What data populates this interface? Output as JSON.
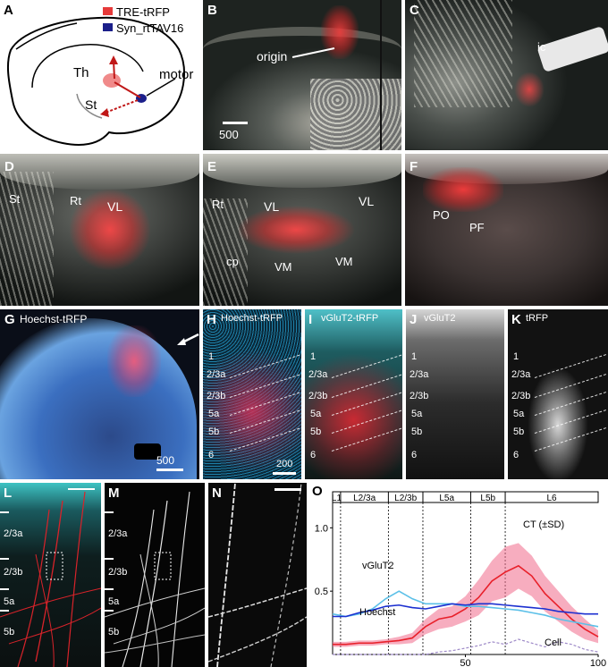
{
  "panels": {
    "A": {
      "label": "A",
      "legend": {
        "red": "TRE-tRFP",
        "blue": "Syn_rtTAV16"
      },
      "regions": {
        "th": "Th",
        "st": "St",
        "motor": "motor"
      },
      "colors": {
        "red": "#e63a3a",
        "blue": "#1b1f8a"
      }
    },
    "B": {
      "label": "B",
      "origin": "origin",
      "scale": "500"
    },
    "C": {
      "label": "C",
      "ic": "ic"
    },
    "D": {
      "label": "D",
      "st": "St",
      "rt": "Rt",
      "vl": "VL"
    },
    "E": {
      "label": "E",
      "rt": "Rt",
      "vl1": "VL",
      "vl2": "VL",
      "cp": "cp",
      "vm1": "VM",
      "vm2": "VM"
    },
    "F": {
      "label": "F",
      "po": "PO",
      "pf": "PF"
    },
    "G": {
      "label": "G",
      "title": "Hoechst-tRFP",
      "scale": "500"
    },
    "H": {
      "label": "H",
      "title": "Hoechst-tRFP",
      "scale": "200"
    },
    "I": {
      "label": "I",
      "title": "vGluT2-tRFP"
    },
    "J": {
      "label": "J",
      "title": "vGluT2"
    },
    "K": {
      "label": "K",
      "title": "tRFP"
    },
    "L": {
      "label": "L"
    },
    "M": {
      "label": "M"
    },
    "N": {
      "label": "N"
    },
    "O": {
      "label": "O"
    }
  },
  "layers": [
    "1",
    "2/3a",
    "2/3b",
    "5a",
    "5b",
    "6"
  ],
  "layers_LM": [
    "2/3a",
    "2/3b",
    "5a",
    "5b"
  ],
  "chart_data": {
    "type": "line",
    "layer_bands": [
      "L1",
      "L2/3a",
      "L2/3b",
      "L5a",
      "L5b",
      "L6"
    ],
    "x_ticks": [
      "50",
      "100"
    ],
    "y_ticks": [
      "1.0",
      "0.5"
    ],
    "xlim": [
      0,
      100
    ],
    "ylim": [
      0,
      1.2
    ],
    "annotations": {
      "ct": "CT (±SD)",
      "vglut2": "vGluT2",
      "hoechst": "Hoechst",
      "cell": "Cell"
    },
    "layer_boundaries": [
      3,
      21,
      34,
      52,
      65
    ],
    "x": [
      0,
      5,
      10,
      15,
      20,
      25,
      30,
      35,
      40,
      45,
      50,
      55,
      60,
      65,
      70,
      75,
      80,
      85,
      90,
      95,
      100
    ],
    "series": [
      {
        "name": "CT (±SD)",
        "color": "#e8202a",
        "values": [
          0.08,
          0.08,
          0.09,
          0.09,
          0.1,
          0.11,
          0.13,
          0.22,
          0.28,
          0.3,
          0.36,
          0.45,
          0.58,
          0.65,
          0.7,
          0.62,
          0.48,
          0.38,
          0.28,
          0.2,
          0.14
        ],
        "sd": [
          0.02,
          0.02,
          0.02,
          0.02,
          0.02,
          0.03,
          0.04,
          0.06,
          0.08,
          0.08,
          0.1,
          0.14,
          0.16,
          0.2,
          0.18,
          0.16,
          0.14,
          0.12,
          0.1,
          0.08,
          0.05
        ]
      },
      {
        "name": "vGluT2",
        "color": "#5cc0e8",
        "values": [
          0.32,
          0.3,
          0.32,
          0.36,
          0.44,
          0.5,
          0.44,
          0.4,
          0.4,
          0.4,
          0.38,
          0.38,
          0.37,
          0.36,
          0.35,
          0.33,
          0.31,
          0.28,
          0.26,
          0.24,
          0.22
        ]
      },
      {
        "name": "Hoechst",
        "color": "#1b2fd0",
        "values": [
          0.3,
          0.3,
          0.33,
          0.35,
          0.38,
          0.39,
          0.37,
          0.36,
          0.38,
          0.4,
          0.39,
          0.4,
          0.4,
          0.39,
          0.38,
          0.37,
          0.36,
          0.34,
          0.33,
          0.32,
          0.32
        ]
      },
      {
        "name": "Cell",
        "color": "#9e8ac8",
        "values": [
          0.0,
          0.0,
          0.0,
          0.0,
          0.0,
          0.0,
          0.0,
          0.0,
          0.02,
          0.03,
          0.05,
          0.07,
          0.1,
          0.08,
          0.12,
          0.09,
          0.06,
          0.1,
          0.08,
          0.04,
          0.02
        ]
      }
    ]
  }
}
